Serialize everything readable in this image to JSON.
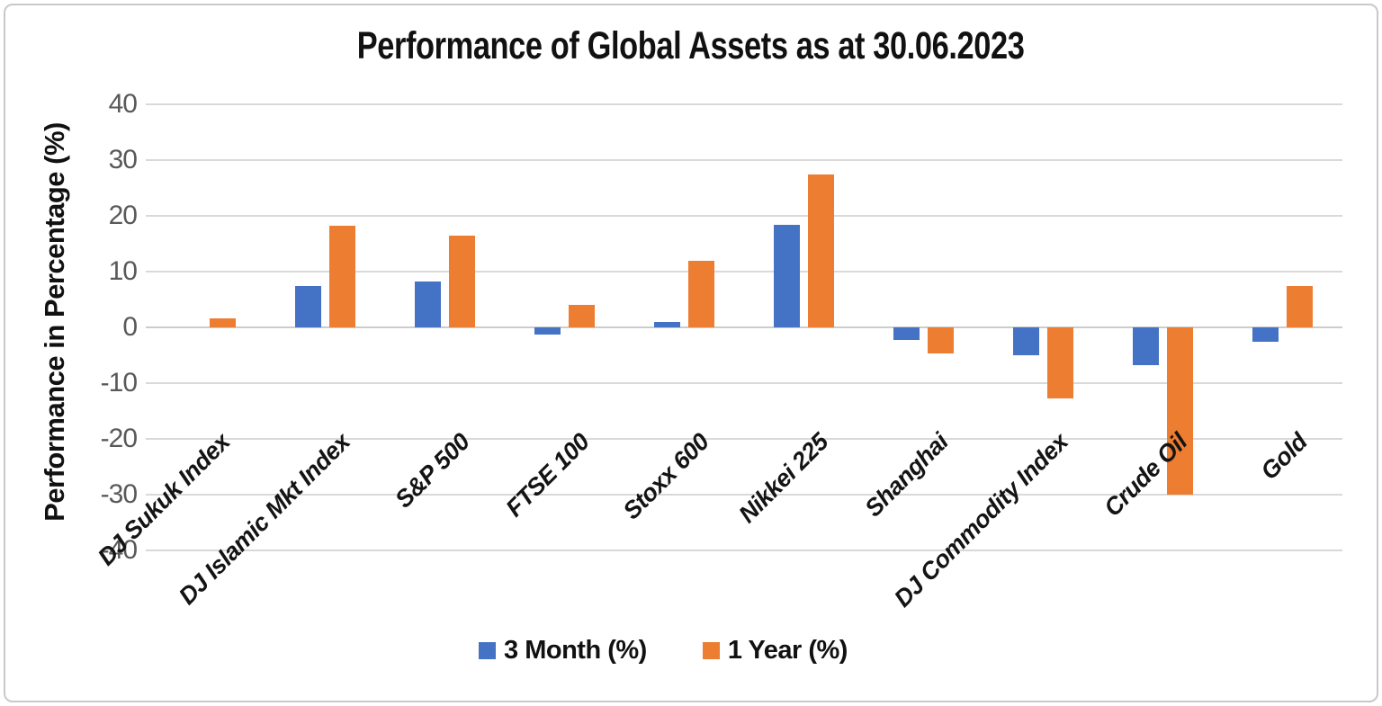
{
  "chart_data": {
    "type": "bar",
    "title": "Performance of Global Assets as at 30.06.2023",
    "xlabel": "",
    "ylabel": "Performance in Percentage (%)",
    "categories": [
      "DJ Sukuk Index",
      "DJ Islamic Mkt Index",
      "S&P 500",
      "FTSE 100",
      "Stoxx 600",
      "Nikkei 225",
      "Shanghai",
      "DJ Commodity Index",
      "Crude Oil",
      "Gold"
    ],
    "series": [
      {
        "name": "3 Month (%)",
        "color": "#4472C4",
        "values": [
          0,
          7.4,
          8.3,
          -1.3,
          0.9,
          18.4,
          -2.2,
          -5.0,
          -6.7,
          -2.5
        ]
      },
      {
        "name": "1 Year (%)",
        "color": "#ED7D31",
        "values": [
          1.6,
          18.3,
          16.5,
          4.0,
          12.0,
          27.5,
          -4.6,
          -12.8,
          -30.0,
          7.5
        ]
      }
    ],
    "ylim": [
      -40,
      40
    ],
    "ytick_step": 10,
    "grid": true,
    "legend_position": "bottom",
    "colors": {
      "gridline": "#D9D9D9",
      "tick_text": "#595959",
      "title_text": "#111111",
      "series_blue": "#4472C4",
      "series_orange": "#ED7D31"
    }
  }
}
